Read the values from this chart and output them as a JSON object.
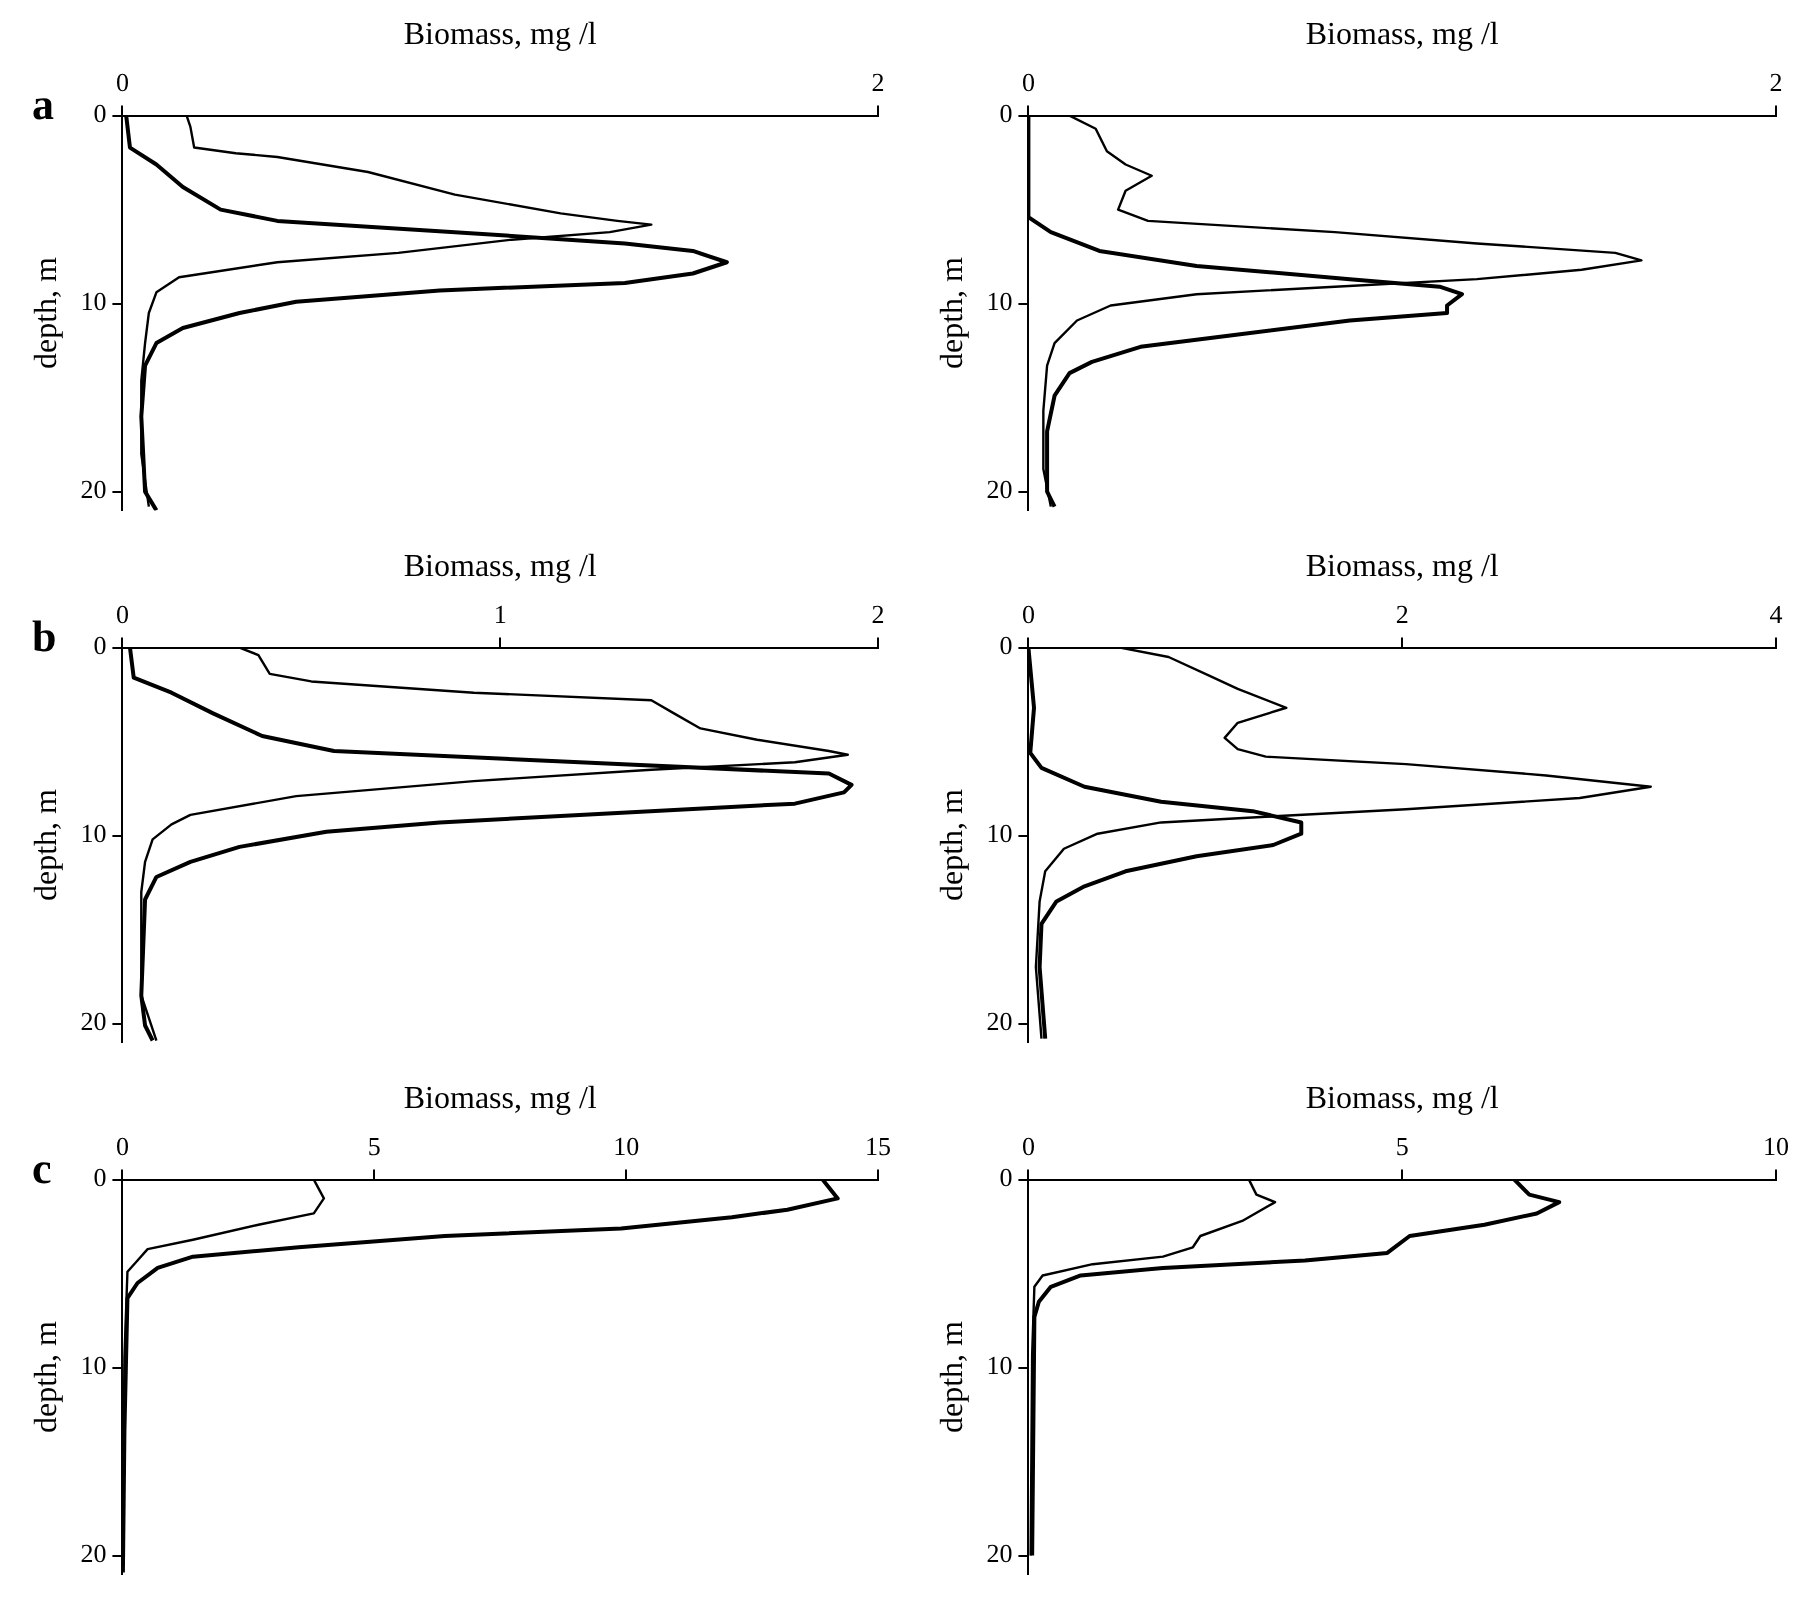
{
  "chart_data": [
    {
      "type": "line",
      "title": "a",
      "xlabel": "Biomass, mg /l",
      "ylabel": "depth, m",
      "xlim": [
        0,
        2
      ],
      "xticks": [
        0,
        2
      ],
      "ylim": [
        21,
        0
      ],
      "yticks": [
        0,
        10,
        20
      ],
      "grid": false,
      "legend": false,
      "marker": "none",
      "line_style": "solid",
      "series": [
        {
          "color": "#000000",
          "x": [
            0.17,
            0.18,
            0.19,
            0.3,
            0.41,
            0.65,
            0.88,
            1.16,
            1.31,
            1.4,
            1.29,
            1.03,
            0.73,
            0.41,
            0.15,
            0.09,
            0.07,
            0.06,
            0.05,
            0.05,
            0.07
          ],
          "values": [
            0,
            0.6,
            1.7,
            2.0,
            2.2,
            3.0,
            4.2,
            5.2,
            5.6,
            5.8,
            6.2,
            6.6,
            7.3,
            7.8,
            8.6,
            9.4,
            10.5,
            12.1,
            14.1,
            18,
            20.8
          ]
        },
        {
          "color": "#000000",
          "x": [
            0.01,
            0.02,
            0.09,
            0.16,
            0.26,
            0.41,
            0.88,
            1.33,
            1.51,
            1.6,
            1.51,
            1.33,
            0.84,
            0.46,
            0.31,
            0.16,
            0.09,
            0.06,
            0.05,
            0.06,
            0.09
          ],
          "values": [
            0,
            1.7,
            2.6,
            3.8,
            5.0,
            5.6,
            6.2,
            6.8,
            7.2,
            7.8,
            8.4,
            8.9,
            9.3,
            9.9,
            10.5,
            11.3,
            12.1,
            13.3,
            16,
            20,
            21
          ]
        }
      ]
    },
    {
      "type": "line",
      "xlabel": "Biomass, mg /l",
      "ylabel": "depth, m",
      "xlim": [
        0,
        2
      ],
      "xticks": [
        0,
        2
      ],
      "ylim": [
        21,
        0
      ],
      "yticks": [
        0,
        10,
        20
      ],
      "grid": false,
      "legend": false,
      "marker": "none",
      "line_style": "solid",
      "series": [
        {
          "color": "#000000",
          "x": [
            0.11,
            0.18,
            0.21,
            0.26,
            0.33,
            0.26,
            0.24,
            0.32,
            0.82,
            1.2,
            1.57,
            1.64,
            1.48,
            1.2,
            0.82,
            0.45,
            0.22,
            0.13,
            0.07,
            0.05,
            0.04,
            0.04,
            0.06
          ],
          "values": [
            0,
            0.7,
            1.9,
            2.6,
            3.2,
            4.0,
            5.0,
            5.6,
            6.2,
            6.8,
            7.3,
            7.7,
            8.2,
            8.7,
            9.1,
            9.5,
            10.1,
            10.9,
            12.1,
            13.3,
            15.7,
            18.8,
            20.8
          ]
        },
        {
          "color": "#000000",
          "x": [
            0.0,
            0.0,
            0.06,
            0.19,
            0.45,
            0.86,
            1.1,
            1.16,
            1.12,
            1.12,
            0.86,
            0.54,
            0.3,
            0.17,
            0.11,
            0.07,
            0.05,
            0.05,
            0.07
          ],
          "values": [
            0,
            5.4,
            6.2,
            7.2,
            8.0,
            8.7,
            9.1,
            9.5,
            10.1,
            10.5,
            10.9,
            11.7,
            12.3,
            13.1,
            13.7,
            14.9,
            16.8,
            20,
            20.8
          ]
        }
      ]
    },
    {
      "type": "line",
      "title": "b",
      "xlabel": "Biomass, mg /l",
      "ylabel": "depth, m",
      "xlim": [
        0,
        2
      ],
      "xticks": [
        0,
        1,
        2
      ],
      "ylim": [
        21,
        0
      ],
      "yticks": [
        0,
        10,
        20
      ],
      "grid": false,
      "legend": false,
      "marker": "none",
      "line_style": "solid",
      "series": [
        {
          "color": "#000000",
          "x": [
            0.31,
            0.36,
            0.39,
            0.5,
            0.93,
            1.4,
            1.46,
            1.53,
            1.68,
            1.87,
            1.92,
            1.78,
            1.4,
            0.93,
            0.46,
            0.18,
            0.13,
            0.08,
            0.06,
            0.05,
            0.05,
            0.09
          ],
          "values": [
            0,
            0.4,
            1.4,
            1.8,
            2.4,
            2.8,
            3.5,
            4.3,
            4.9,
            5.5,
            5.7,
            6.1,
            6.5,
            7.1,
            7.9,
            8.9,
            9.4,
            10.2,
            11.4,
            13,
            18.5,
            20.9
          ]
        },
        {
          "color": "#000000",
          "x": [
            0.02,
            0.03,
            0.13,
            0.24,
            0.37,
            0.56,
            1.21,
            1.87,
            1.93,
            1.91,
            1.78,
            1.21,
            0.84,
            0.54,
            0.31,
            0.18,
            0.09,
            0.06,
            0.05,
            0.06,
            0.08
          ],
          "values": [
            0,
            1.6,
            2.4,
            3.5,
            4.7,
            5.5,
            6.1,
            6.7,
            7.3,
            7.7,
            8.3,
            8.9,
            9.3,
            9.8,
            10.6,
            11.4,
            12.2,
            13.4,
            18.5,
            20.1,
            20.9
          ]
        }
      ]
    },
    {
      "type": "line",
      "xlabel": "Biomass, mg /l",
      "ylabel": "depth, m",
      "xlim": [
        0,
        4
      ],
      "xticks": [
        0,
        2,
        4
      ],
      "ylim": [
        21,
        0
      ],
      "yticks": [
        0,
        10,
        20
      ],
      "grid": false,
      "legend": false,
      "marker": "none",
      "line_style": "solid",
      "series": [
        {
          "color": "#000000",
          "x": [
            0.49,
            0.75,
            0.97,
            1.12,
            1.38,
            1.12,
            1.05,
            1.12,
            1.27,
            2.02,
            2.77,
            3.33,
            2.95,
            2.02,
            1.27,
            0.71,
            0.37,
            0.19,
            0.09,
            0.06,
            0.04,
            0.07
          ],
          "values": [
            0,
            0.5,
            1.5,
            2.2,
            3.2,
            4.0,
            4.8,
            5.4,
            5.8,
            6.2,
            6.8,
            7.4,
            8.0,
            8.6,
            9.0,
            9.3,
            9.9,
            10.7,
            11.9,
            13.5,
            17,
            20.8
          ]
        },
        {
          "color": "#000000",
          "x": [
            0.0,
            0.03,
            0.01,
            0.07,
            0.3,
            0.71,
            1.2,
            1.46,
            1.46,
            1.31,
            0.9,
            0.52,
            0.3,
            0.15,
            0.07,
            0.06,
            0.09
          ],
          "values": [
            0,
            3.2,
            5.6,
            6.4,
            7.4,
            8.2,
            8.7,
            9.3,
            9.9,
            10.5,
            11.1,
            11.9,
            12.7,
            13.5,
            14.7,
            17,
            20.8
          ]
        }
      ]
    },
    {
      "type": "line",
      "title": "c",
      "xlabel": "Biomass, mg /l",
      "ylabel": "depth, m",
      "xlim": [
        0,
        15
      ],
      "xticks": [
        0,
        5,
        10,
        15
      ],
      "ylim": [
        21,
        0
      ],
      "yticks": [
        0,
        10,
        20
      ],
      "grid": false,
      "legend": false,
      "marker": "none",
      "line_style": "solid",
      "series": [
        {
          "color": "#000000",
          "x": [
            3.8,
            4.0,
            3.8,
            2.7,
            1.4,
            0.5,
            0.3,
            0.1,
            0.04,
            0.01
          ],
          "values": [
            0,
            1.0,
            1.8,
            2.4,
            3.2,
            3.7,
            4.3,
            4.9,
            9.5,
            20
          ]
        },
        {
          "color": "#000000",
          "x": [
            13.9,
            14.2,
            13.2,
            12.1,
            9.9,
            6.4,
            3.5,
            1.4,
            0.7,
            0.3,
            0.1,
            0.04,
            0.01
          ],
          "values": [
            0,
            1.0,
            1.6,
            2.0,
            2.6,
            3.0,
            3.6,
            4.1,
            4.7,
            5.5,
            6.3,
            13.4,
            20.9
          ]
        }
      ]
    },
    {
      "type": "line",
      "xlabel": "Biomass, mg /l",
      "ylabel": "depth, m",
      "xlim": [
        0,
        10
      ],
      "xticks": [
        0,
        5,
        10
      ],
      "ylim": [
        21,
        0
      ],
      "yticks": [
        0,
        10,
        20
      ],
      "grid": false,
      "legend": false,
      "marker": "none",
      "line_style": "solid",
      "series": [
        {
          "color": "#000000",
          "x": [
            2.95,
            3.05,
            3.3,
            2.86,
            2.3,
            2.2,
            1.8,
            0.86,
            0.19,
            0.08,
            0.05,
            0.03
          ],
          "values": [
            0,
            0.8,
            1.2,
            2.2,
            3.0,
            3.6,
            4.1,
            4.5,
            5.1,
            5.7,
            9.3,
            20
          ]
        },
        {
          "color": "#000000",
          "x": [
            6.5,
            6.7,
            7.1,
            6.8,
            6.1,
            5.1,
            4.8,
            3.7,
            1.8,
            0.7,
            0.3,
            0.14,
            0.08,
            0.05
          ],
          "values": [
            0,
            0.8,
            1.2,
            1.8,
            2.4,
            3.0,
            3.9,
            4.3,
            4.7,
            5.1,
            5.7,
            6.5,
            7.3,
            20
          ]
        }
      ]
    }
  ]
}
